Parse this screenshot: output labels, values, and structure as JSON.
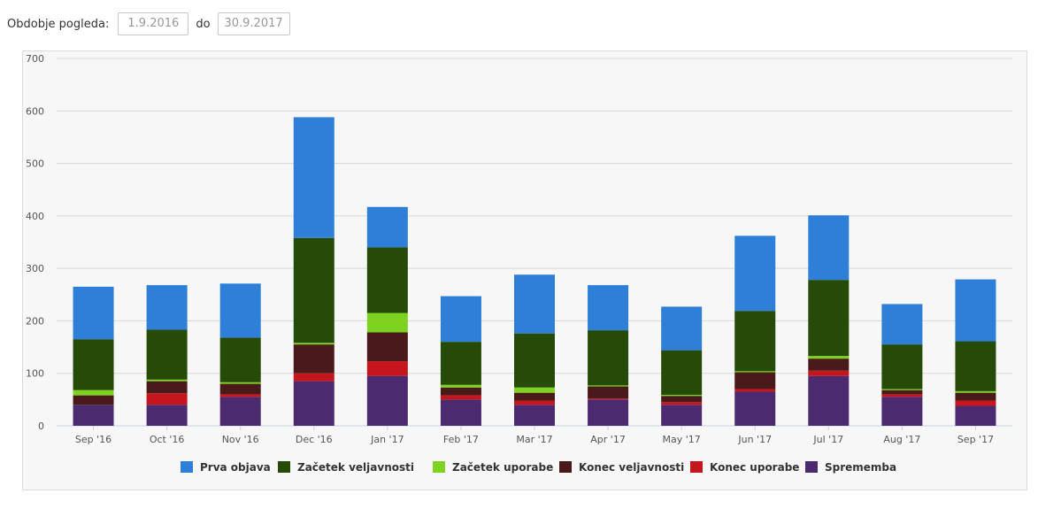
{
  "filter": {
    "label": "Obdobje pogleda:",
    "from": "1.9.2016",
    "separator": "do",
    "to": "30.9.2017"
  },
  "chart_data": {
    "type": "bar",
    "stacked": true,
    "categories": [
      "Sep '16",
      "Oct '16",
      "Nov '16",
      "Dec '16",
      "Jan '17",
      "Feb '17",
      "Mar '17",
      "Apr '17",
      "May '17",
      "Jun '17",
      "Jul '17",
      "Aug '17",
      "Sep '17"
    ],
    "ylim": [
      0,
      700
    ],
    "yticks": [
      "0",
      "100",
      "200",
      "300",
      "400",
      "500",
      "600",
      "700"
    ],
    "grid": true,
    "legend_position": "bottom",
    "series": [
      {
        "name": "Sprememba",
        "color": "#4b2a6f",
        "values": [
          40,
          40,
          55,
          85,
          95,
          50,
          40,
          50,
          40,
          65,
          95,
          55,
          38
        ]
      },
      {
        "name": "Konec uporabe",
        "color": "#c4161c",
        "values": [
          0,
          22,
          5,
          15,
          28,
          8,
          8,
          2,
          5,
          5,
          10,
          5,
          10
        ]
      },
      {
        "name": "Konec veljavnosti",
        "color": "#4a1a1a",
        "values": [
          18,
          23,
          20,
          55,
          55,
          15,
          15,
          23,
          12,
          32,
          23,
          8,
          15
        ]
      },
      {
        "name": "Začetek uporabe",
        "color": "#7ed321",
        "values": [
          10,
          3,
          3,
          3,
          37,
          5,
          10,
          2,
          2,
          2,
          5,
          2,
          3
        ]
      },
      {
        "name": "Začetek veljavnosti",
        "color": "#264a07",
        "values": [
          97,
          95,
          85,
          200,
          125,
          82,
          103,
          105,
          85,
          115,
          145,
          85,
          95
        ]
      },
      {
        "name": "Prva objava",
        "color": "#2e7fd8",
        "values": [
          100,
          85,
          103,
          230,
          77,
          87,
          112,
          86,
          83,
          143,
          123,
          77,
          118
        ]
      }
    ],
    "legend_order": [
      "Prva objava",
      "Začetek veljavnosti",
      "Začetek uporabe",
      "Konec veljavnosti",
      "Konec uporabe",
      "Sprememba"
    ]
  }
}
